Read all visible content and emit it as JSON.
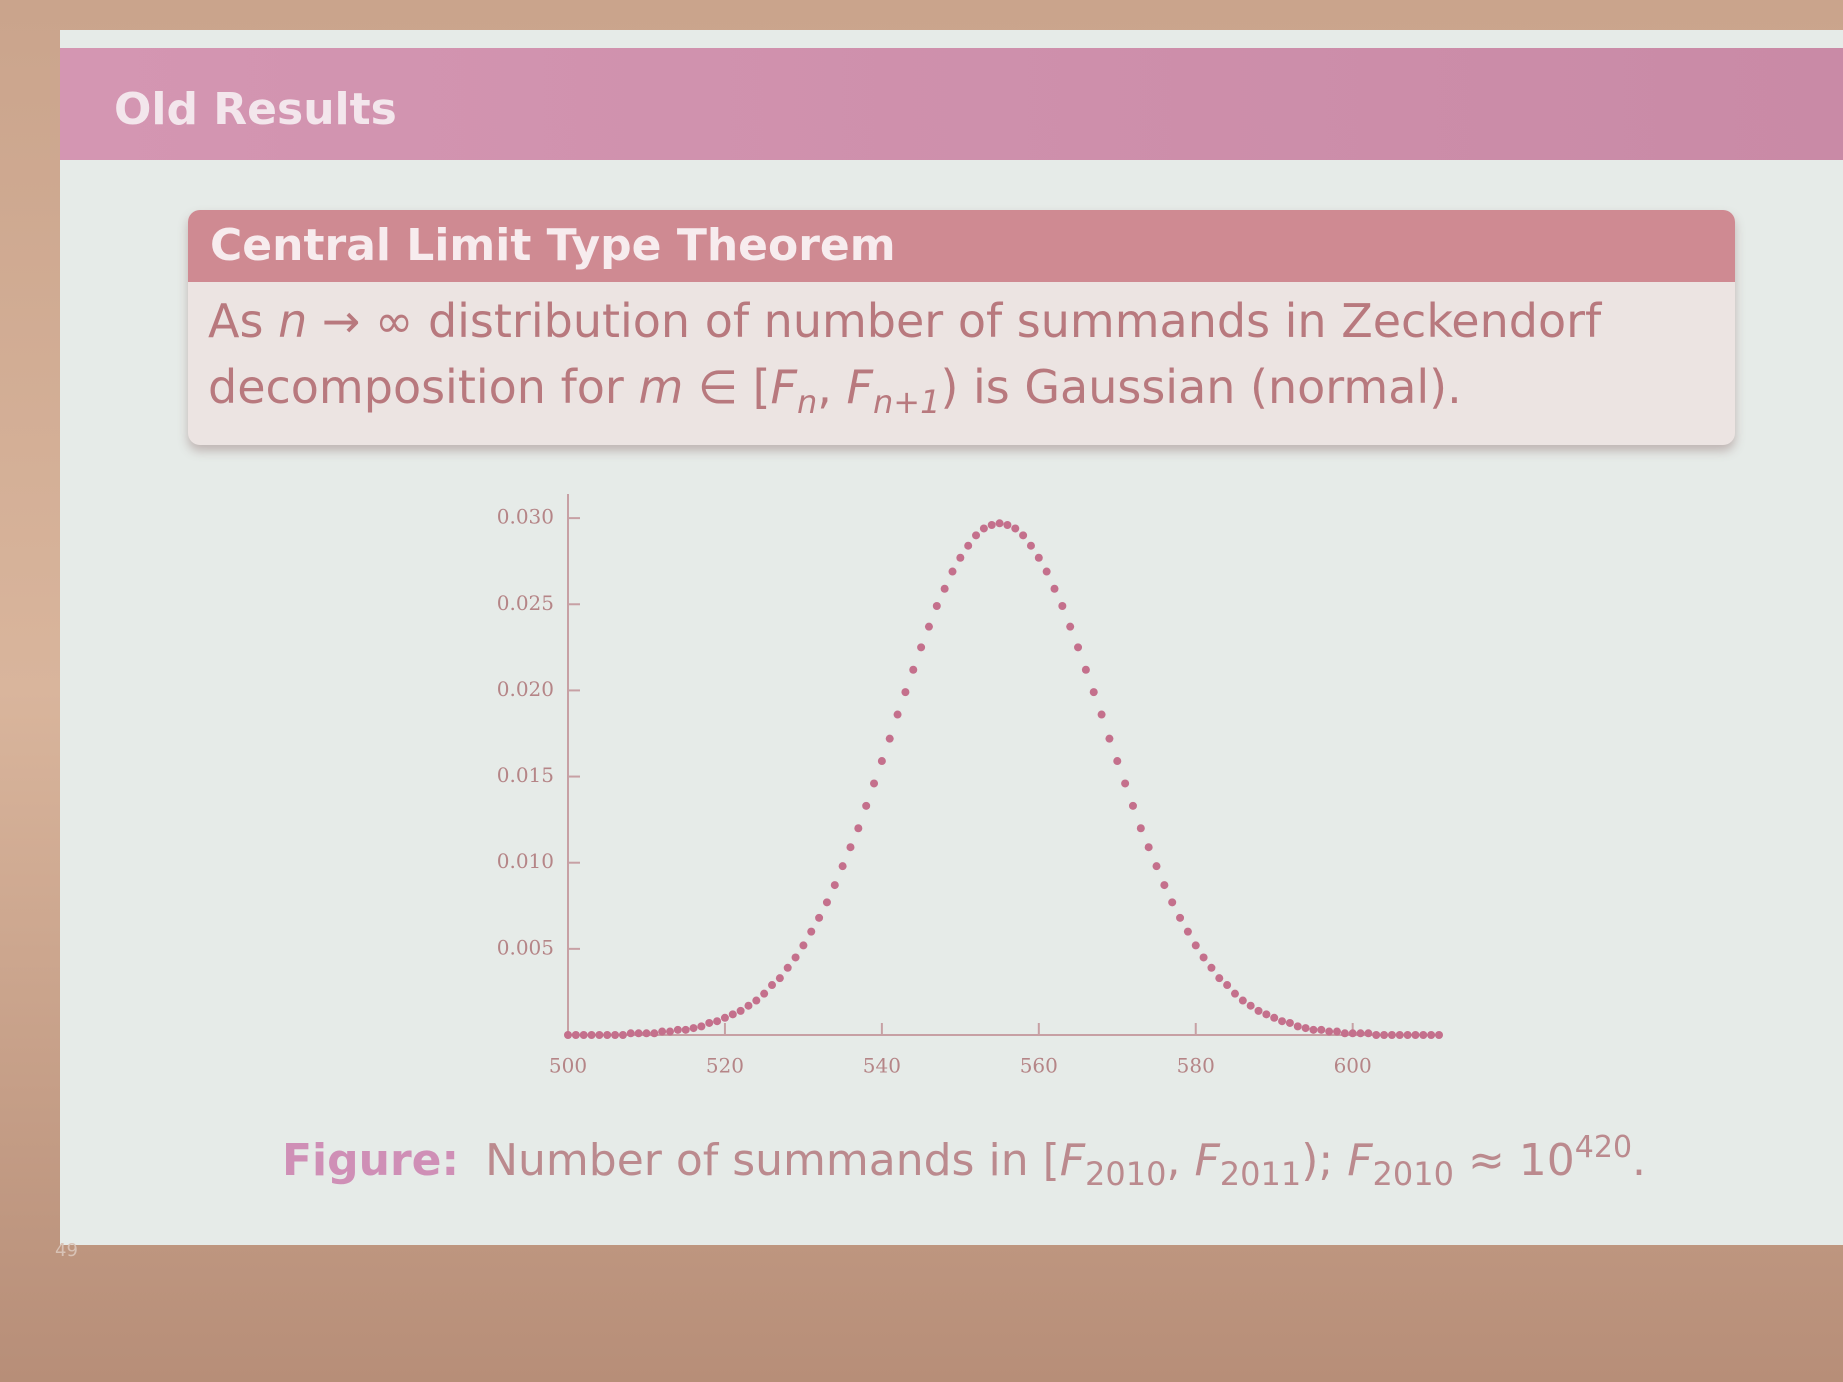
{
  "slide": {
    "title": "Old Results",
    "number": "49"
  },
  "theorem": {
    "title": "Central Limit Type Theorem",
    "body": [
      "As ",
      "n",
      " → ∞ distribution of number of summands in Zeckendorf",
      "decomposition for ",
      "m",
      " ∈ [",
      "F",
      "n",
      ", ",
      "F",
      "n+1",
      ") is Gaussian (normal)."
    ]
  },
  "caption": {
    "label": "Figure:",
    "text": [
      "Number of summands in [",
      "F",
      "2010",
      ", ",
      "F",
      "2011",
      "); ",
      "F",
      "2010",
      " ≈ 10",
      "420",
      "."
    ]
  },
  "chart_data": {
    "type": "scatter",
    "color": "#c4708c",
    "x": [
      500,
      501,
      502,
      503,
      504,
      505,
      506,
      507,
      508,
      509,
      510,
      511,
      512,
      513,
      514,
      515,
      516,
      517,
      518,
      519,
      520,
      521,
      522,
      523,
      524,
      525,
      526,
      527,
      528,
      529,
      530,
      531,
      532,
      533,
      534,
      535,
      536,
      537,
      538,
      539,
      540,
      541,
      542,
      543,
      544,
      545,
      546,
      547,
      548,
      549,
      550,
      551,
      552,
      553,
      554,
      555,
      556,
      557,
      558,
      559,
      560,
      561,
      562,
      563,
      564,
      565,
      566,
      567,
      568,
      569,
      570,
      571,
      572,
      573,
      574,
      575,
      576,
      577,
      578,
      579,
      580,
      581,
      582,
      583,
      584,
      585,
      586,
      587,
      588,
      589,
      590,
      591,
      592,
      593,
      594,
      595,
      596,
      597,
      598,
      599,
      600,
      601,
      602,
      603,
      604,
      605,
      606,
      607,
      608,
      609,
      610,
      611
    ],
    "values": [
      0,
      0,
      0,
      0,
      0,
      0,
      0,
      0,
      0.0001,
      0.0001,
      0.0001,
      0.0001,
      0.0002,
      0.0002,
      0.0003,
      0.0003,
      0.0004,
      0.0005,
      0.0007,
      0.0008,
      0.001,
      0.0012,
      0.0014,
      0.0017,
      0.002,
      0.0024,
      0.0029,
      0.0033,
      0.0039,
      0.0045,
      0.0052,
      0.006,
      0.0068,
      0.0077,
      0.0087,
      0.0098,
      0.0109,
      0.012,
      0.0133,
      0.0146,
      0.0159,
      0.0172,
      0.0186,
      0.0199,
      0.0212,
      0.0225,
      0.0237,
      0.0249,
      0.0259,
      0.0269,
      0.0277,
      0.0284,
      0.029,
      0.0294,
      0.0296,
      0.0297,
      0.0296,
      0.0294,
      0.029,
      0.0284,
      0.0277,
      0.0269,
      0.0259,
      0.0249,
      0.0237,
      0.0225,
      0.0212,
      0.0199,
      0.0186,
      0.0172,
      0.0159,
      0.0146,
      0.0133,
      0.012,
      0.0109,
      0.0098,
      0.0087,
      0.0077,
      0.0068,
      0.006,
      0.0052,
      0.0045,
      0.0039,
      0.0033,
      0.0029,
      0.0024,
      0.002,
      0.0017,
      0.0014,
      0.0012,
      0.001,
      0.0008,
      0.0007,
      0.0005,
      0.0004,
      0.0003,
      0.0003,
      0.0002,
      0.0002,
      0.0001,
      0.0001,
      0.0001,
      0.0001,
      0,
      0,
      0,
      0,
      0,
      0,
      0,
      0,
      0
    ],
    "xlim": [
      500,
      611
    ],
    "xticks": [
      500,
      520,
      540,
      560,
      580,
      600
    ],
    "ylim": [
      0,
      0.0314
    ],
    "yticks": [
      {
        "value": 0.03,
        "label": "0.030"
      },
      0.025,
      {
        "value": 0.02,
        "label": "0.020"
      },
      0.015,
      {
        "value": 0.01,
        "label": "0.010"
      },
      0.005
    ]
  }
}
